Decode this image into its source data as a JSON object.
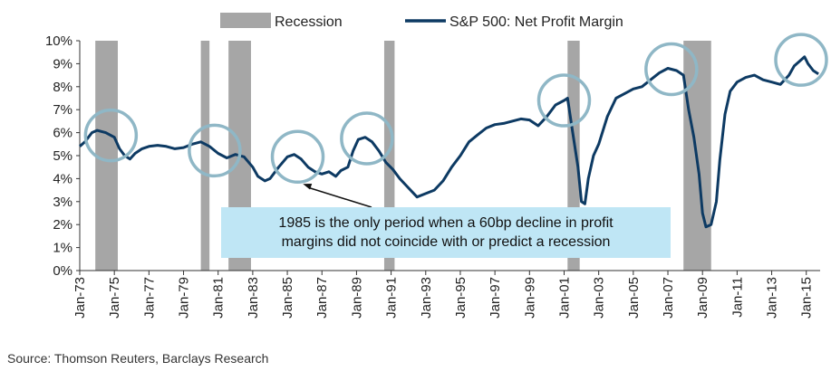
{
  "chart_data": {
    "type": "line",
    "title": "",
    "xlabel": "",
    "ylabel": "",
    "ylim": [
      0,
      10
    ],
    "y_ticks": [
      "0%",
      "1%",
      "2%",
      "3%",
      "4%",
      "5%",
      "6%",
      "7%",
      "8%",
      "9%",
      "10%"
    ],
    "x_ticks": [
      "Jan-73",
      "Jan-75",
      "Jan-77",
      "Jan-79",
      "Jan-81",
      "Jan-83",
      "Jan-85",
      "Jan-87",
      "Jan-89",
      "Jan-91",
      "Jan-93",
      "Jan-95",
      "Jan-97",
      "Jan-99",
      "Jan-01",
      "Jan-03",
      "Jan-05",
      "Jan-07",
      "Jan-09",
      "Jan-11",
      "Jan-13",
      "Jan-15"
    ],
    "legend": {
      "placement": "top-center",
      "recession_label": "Recession",
      "series_label": "S&P 500: Net Profit Margin"
    },
    "recessions": [
      {
        "start": 1973.9,
        "end": 1975.2
      },
      {
        "start": 1980.0,
        "end": 1980.5
      },
      {
        "start": 1981.6,
        "end": 1982.9
      },
      {
        "start": 1990.6,
        "end": 1991.2
      },
      {
        "start": 2001.2,
        "end": 2001.9
      },
      {
        "start": 2007.9,
        "end": 2009.5
      }
    ],
    "series": [
      {
        "name": "S&P 500: Net Profit Margin",
        "color": "#0d3a63",
        "points": [
          [
            1973.0,
            5.4
          ],
          [
            1973.3,
            5.6
          ],
          [
            1973.7,
            6.0
          ],
          [
            1974.0,
            6.1
          ],
          [
            1974.5,
            6.0
          ],
          [
            1975.0,
            5.8
          ],
          [
            1975.3,
            5.3
          ],
          [
            1975.6,
            5.0
          ],
          [
            1975.9,
            4.85
          ],
          [
            1976.2,
            5.1
          ],
          [
            1976.6,
            5.3
          ],
          [
            1977.0,
            5.4
          ],
          [
            1977.5,
            5.45
          ],
          [
            1978.0,
            5.4
          ],
          [
            1978.5,
            5.3
          ],
          [
            1979.0,
            5.35
          ],
          [
            1979.5,
            5.5
          ],
          [
            1980.0,
            5.6
          ],
          [
            1980.5,
            5.4
          ],
          [
            1981.0,
            5.1
          ],
          [
            1981.5,
            4.9
          ],
          [
            1982.0,
            5.05
          ],
          [
            1982.5,
            4.95
          ],
          [
            1983.0,
            4.5
          ],
          [
            1983.3,
            4.1
          ],
          [
            1983.7,
            3.9
          ],
          [
            1984.0,
            4.0
          ],
          [
            1984.5,
            4.5
          ],
          [
            1985.0,
            4.95
          ],
          [
            1985.4,
            5.05
          ],
          [
            1985.8,
            4.85
          ],
          [
            1986.2,
            4.5
          ],
          [
            1986.6,
            4.3
          ],
          [
            1987.0,
            4.2
          ],
          [
            1987.4,
            4.3
          ],
          [
            1987.8,
            4.1
          ],
          [
            1988.1,
            4.35
          ],
          [
            1988.5,
            4.5
          ],
          [
            1988.8,
            5.2
          ],
          [
            1989.1,
            5.7
          ],
          [
            1989.5,
            5.8
          ],
          [
            1989.9,
            5.6
          ],
          [
            1990.3,
            5.2
          ],
          [
            1990.7,
            4.7
          ],
          [
            1991.1,
            4.4
          ],
          [
            1991.5,
            4.0
          ],
          [
            1992.0,
            3.6
          ],
          [
            1992.5,
            3.2
          ],
          [
            1993.0,
            3.35
          ],
          [
            1993.5,
            3.5
          ],
          [
            1994.0,
            3.9
          ],
          [
            1994.5,
            4.5
          ],
          [
            1995.0,
            5.0
          ],
          [
            1995.5,
            5.6
          ],
          [
            1996.0,
            5.9
          ],
          [
            1996.5,
            6.2
          ],
          [
            1997.0,
            6.35
          ],
          [
            1997.5,
            6.4
          ],
          [
            1998.0,
            6.5
          ],
          [
            1998.5,
            6.6
          ],
          [
            1999.0,
            6.55
          ],
          [
            1999.5,
            6.3
          ],
          [
            2000.0,
            6.7
          ],
          [
            2000.5,
            7.2
          ],
          [
            2001.0,
            7.4
          ],
          [
            2001.2,
            7.5
          ],
          [
            2001.5,
            6.0
          ],
          [
            2001.8,
            4.5
          ],
          [
            2002.0,
            3.0
          ],
          [
            2002.2,
            2.9
          ],
          [
            2002.4,
            4.0
          ],
          [
            2002.7,
            5.0
          ],
          [
            2003.0,
            5.5
          ],
          [
            2003.5,
            6.7
          ],
          [
            2004.0,
            7.5
          ],
          [
            2004.5,
            7.7
          ],
          [
            2005.0,
            7.9
          ],
          [
            2005.5,
            8.0
          ],
          [
            2006.0,
            8.3
          ],
          [
            2006.5,
            8.6
          ],
          [
            2007.0,
            8.8
          ],
          [
            2007.5,
            8.7
          ],
          [
            2007.9,
            8.5
          ],
          [
            2008.2,
            7.0
          ],
          [
            2008.5,
            5.8
          ],
          [
            2008.8,
            4.2
          ],
          [
            2009.0,
            2.5
          ],
          [
            2009.2,
            1.9
          ],
          [
            2009.5,
            2.0
          ],
          [
            2009.8,
            3.0
          ],
          [
            2010.0,
            4.8
          ],
          [
            2010.3,
            6.8
          ],
          [
            2010.6,
            7.8
          ],
          [
            2011.0,
            8.2
          ],
          [
            2011.5,
            8.4
          ],
          [
            2012.0,
            8.5
          ],
          [
            2012.5,
            8.3
          ],
          [
            2013.0,
            8.2
          ],
          [
            2013.5,
            8.1
          ],
          [
            2014.0,
            8.5
          ],
          [
            2014.3,
            8.9
          ],
          [
            2014.6,
            9.1
          ],
          [
            2014.9,
            9.3
          ],
          [
            2015.1,
            9.0
          ],
          [
            2015.4,
            8.7
          ],
          [
            2015.7,
            8.55
          ]
        ]
      }
    ],
    "highlight_circles": [
      1974.8,
      1980.8,
      1985.6,
      1989.6,
      2001.0,
      2007.2,
      2014.7
    ],
    "annotation": {
      "lines": [
        "1985 is the only period when  a 60bp decline in profit",
        "margins did not coincide with or predict a recession"
      ]
    },
    "source": "Source: Thomson Reuters, Barclays Research"
  },
  "colors": {
    "recession": "#a6a6a6",
    "line": "#0d3a63",
    "circle": "#8fb7c6",
    "callout": "#bfe6f5",
    "axis": "#333333"
  }
}
